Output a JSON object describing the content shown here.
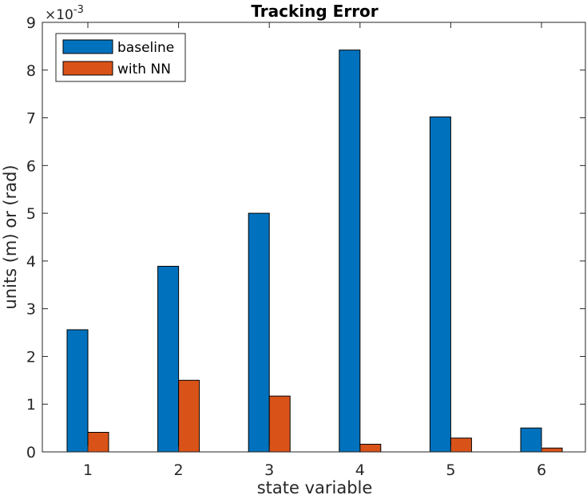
{
  "chart_data": {
    "type": "bar",
    "title": "Tracking Error",
    "xlabel": "state variable",
    "ylabel": "units (m) or (rad)",
    "y_exponent_label": "×10",
    "y_exponent_power": "-3",
    "categories": [
      "1",
      "2",
      "3",
      "4",
      "5",
      "6"
    ],
    "series": [
      {
        "name": "baseline",
        "color": "#0072BD",
        "values": [
          2.56,
          3.89,
          5.0,
          8.42,
          7.02,
          0.5
        ]
      },
      {
        "name": "with NN",
        "color": "#D95319",
        "values": [
          0.41,
          1.5,
          1.17,
          0.16,
          0.29,
          0.08
        ]
      }
    ],
    "ylim": [
      0,
      9
    ],
    "yticks": [
      "0",
      "1",
      "2",
      "3",
      "4",
      "5",
      "6",
      "7",
      "8",
      "9"
    ],
    "grid": false,
    "legend_position": "top-left"
  }
}
